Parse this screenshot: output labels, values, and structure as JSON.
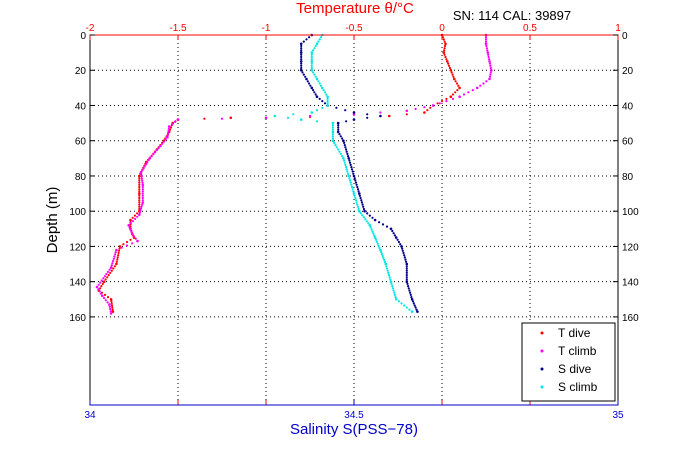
{
  "chart_data": {
    "type": "scatter",
    "title": "Temperature θ/°C",
    "annotation": "SN: 114  CAL: 39897",
    "xlabel": "Salinity S(PSS−78)",
    "ylabel": "Depth (m)",
    "top_axis": {
      "label": "Temperature θ/°C",
      "range": [
        -2,
        1
      ],
      "ticks": [
        -2,
        -1.5,
        -1,
        -0.5,
        0,
        0.5,
        1
      ],
      "tick_labels": [
        "-2",
        "-1.5",
        "-1",
        "-0.5",
        "0",
        "0.5",
        "1"
      ],
      "color": "#ff0000"
    },
    "bottom_axis": {
      "label": "Salinity S(PSS−78)",
      "range": [
        34,
        35
      ],
      "ticks": [
        34,
        34.5,
        35
      ],
      "tick_labels": [
        "34",
        "34.5",
        "35"
      ],
      "color": "#0000cc"
    },
    "y_axis": {
      "range": [
        0,
        210
      ],
      "reversed": true,
      "ticks": [
        0,
        20,
        40,
        60,
        80,
        100,
        120,
        140,
        160
      ],
      "tick_labels": [
        "0",
        "20",
        "40",
        "60",
        "80",
        "100",
        "120",
        "140",
        "160"
      ]
    },
    "grid": true,
    "legend_position": "bottom-right",
    "series": [
      {
        "name": "T dive",
        "axis": "temperature",
        "color": "#ff0000",
        "points": [
          [
            0.0,
            0
          ],
          [
            0.02,
            5
          ],
          [
            0.01,
            10
          ],
          [
            0.03,
            15
          ],
          [
            0.05,
            20
          ],
          [
            0.07,
            25
          ],
          [
            0.1,
            30
          ],
          [
            0.05,
            35
          ],
          [
            -0.05,
            40
          ],
          [
            -0.1,
            44
          ],
          [
            -0.3,
            46
          ],
          [
            -1.2,
            47
          ],
          [
            -1.5,
            48
          ],
          [
            -1.53,
            50
          ],
          [
            -1.55,
            55
          ],
          [
            -1.58,
            60
          ],
          [
            -1.62,
            65
          ],
          [
            -1.68,
            72
          ],
          [
            -1.72,
            80
          ],
          [
            -1.72,
            90
          ],
          [
            -1.72,
            100
          ],
          [
            -1.77,
            105
          ],
          [
            -1.77,
            110
          ],
          [
            -1.75,
            115
          ],
          [
            -1.83,
            120
          ],
          [
            -1.85,
            130
          ],
          [
            -1.92,
            140
          ],
          [
            -1.95,
            145
          ],
          [
            -1.88,
            150
          ],
          [
            -1.87,
            157
          ]
        ]
      },
      {
        "name": "T climb",
        "axis": "temperature",
        "color": "#ff00ff",
        "points": [
          [
            0.25,
            0
          ],
          [
            0.25,
            5
          ],
          [
            0.26,
            10
          ],
          [
            0.27,
            15
          ],
          [
            0.28,
            20
          ],
          [
            0.27,
            25
          ],
          [
            0.2,
            30
          ],
          [
            0.1,
            35
          ],
          [
            -0.05,
            40
          ],
          [
            -0.2,
            43
          ],
          [
            -0.5,
            45
          ],
          [
            -1.0,
            47
          ],
          [
            -1.5,
            48
          ],
          [
            -1.55,
            52
          ],
          [
            -1.56,
            58
          ],
          [
            -1.6,
            63
          ],
          [
            -1.66,
            70
          ],
          [
            -1.71,
            78
          ],
          [
            -1.7,
            85
          ],
          [
            -1.7,
            95
          ],
          [
            -1.72,
            102
          ],
          [
            -1.78,
            108
          ],
          [
            -1.76,
            113
          ],
          [
            -1.73,
            117
          ],
          [
            -1.85,
            122
          ],
          [
            -1.88,
            132
          ],
          [
            -1.96,
            143
          ],
          [
            -1.93,
            148
          ],
          [
            -1.89,
            153
          ],
          [
            -1.88,
            158
          ]
        ]
      },
      {
        "name": "S dive",
        "axis": "salinity",
        "color": "#00008b",
        "points": [
          [
            34.42,
            0
          ],
          [
            34.4,
            5
          ],
          [
            34.4,
            10
          ],
          [
            34.4,
            15
          ],
          [
            34.4,
            20
          ],
          [
            34.41,
            25
          ],
          [
            34.42,
            30
          ],
          [
            34.43,
            35
          ],
          [
            34.45,
            40
          ],
          [
            34.5,
            44
          ],
          [
            34.55,
            46
          ],
          [
            34.5,
            48
          ],
          [
            34.47,
            50
          ],
          [
            34.47,
            55
          ],
          [
            34.48,
            60
          ],
          [
            34.49,
            70
          ],
          [
            34.5,
            80
          ],
          [
            34.51,
            90
          ],
          [
            34.52,
            100
          ],
          [
            34.54,
            105
          ],
          [
            34.57,
            110
          ],
          [
            34.58,
            115
          ],
          [
            34.59,
            120
          ],
          [
            34.6,
            130
          ],
          [
            34.6,
            140
          ],
          [
            34.61,
            150
          ],
          [
            34.62,
            157
          ]
        ]
      },
      {
        "name": "S climb",
        "axis": "salinity",
        "color": "#00e5e5",
        "points": [
          [
            34.44,
            0
          ],
          [
            34.43,
            5
          ],
          [
            34.42,
            10
          ],
          [
            34.42,
            15
          ],
          [
            34.42,
            20
          ],
          [
            34.43,
            25
          ],
          [
            34.44,
            30
          ],
          [
            34.45,
            35
          ],
          [
            34.45,
            40
          ],
          [
            34.42,
            44
          ],
          [
            34.35,
            46
          ],
          [
            34.4,
            48
          ],
          [
            34.46,
            50
          ],
          [
            34.46,
            55
          ],
          [
            34.46,
            60
          ],
          [
            34.48,
            70
          ],
          [
            34.49,
            80
          ],
          [
            34.5,
            90
          ],
          [
            34.51,
            100
          ],
          [
            34.53,
            108
          ],
          [
            34.54,
            115
          ],
          [
            34.55,
            122
          ],
          [
            34.56,
            130
          ],
          [
            34.57,
            140
          ],
          [
            34.58,
            150
          ],
          [
            34.61,
            157
          ]
        ]
      }
    ]
  }
}
